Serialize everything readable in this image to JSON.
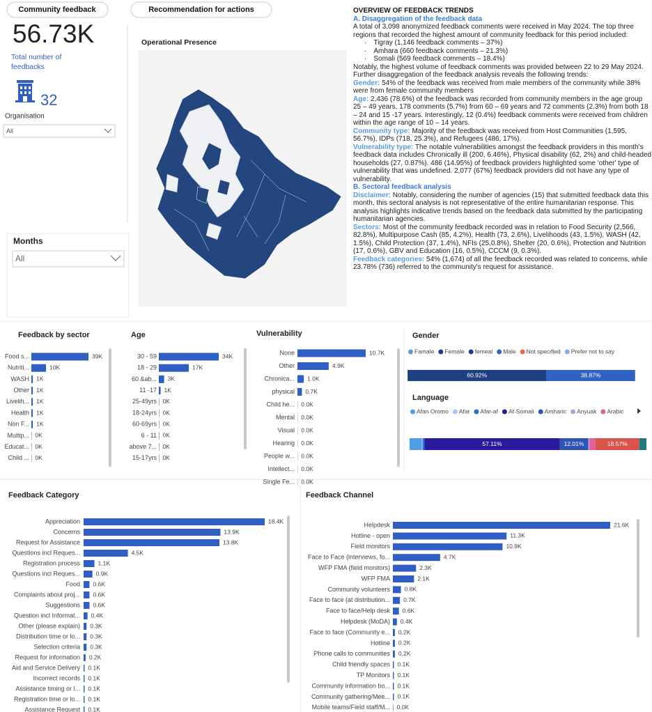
{
  "header": {
    "feedback_button": "Community feedback",
    "recommendation_button": "Recommendation for actions"
  },
  "kpi": {
    "total_value": "56.73K",
    "total_label": "Total number of feedbacks",
    "organisation_count": "32",
    "organisation_label": "Organisation",
    "organisation_slicer": "All"
  },
  "months": {
    "title": "Months",
    "slicer": "All"
  },
  "map": {
    "title": "Operational Presence"
  },
  "overview": {
    "title": "OVERVIEW OF FEEDBACK TRENDS",
    "sections": [
      {
        "heading": "A. Disaggregation of the feedback data",
        "paragraphs": [
          {
            "text": "A total of 3,098 anonymized feedback comments were received in May 2024. The top three regions that recorded the highest amount of community feedback for this period included:",
            "items": [
              "Tigray (1,146 feedback comments – 37%)",
              "Amhara (660 feedback comments – 21.3%)",
              "Somali (569 feedback comments – 18.4%)"
            ]
          },
          {
            "text": "Notably, the highest volume of feedback comments was provided between 22 to 29 May 2024. Further disaggregation of the feedback analysis reveals the following trends:"
          },
          {
            "label": "Gender:",
            "text": "54% of the feedback was received from male members of the community while 38% were from female community members"
          },
          {
            "label": "Age:",
            "text": "2,436 (78.6%) of the feedback was recorded from community members in the age group 25 – 49 years, 178 comments (5.7%) from 60 – 69 years and 72 comments (2.3%) from both 18 – 24 and 15 -17 years. Interestingly, 12 (0.4%) feedback comments were received from children within the age range of 10 – 14 years."
          },
          {
            "label": "Community type:",
            "text": "Majority of the feedback was received from Host Communities (1,595, 56.7%), IDPs (718, 25.3%), and Refugees (486, 17%)."
          },
          {
            "label": "Vulnerability type:",
            "text": "The notable vulnerabilities amongst the feedback providers in this month's feedback data includes Chronically ill (200, 6.46%), Physical disability (62, 2%) and child-headed households (27, 0.87%).  486 (14.95%) of feedback providers highlighted some 'other' type of vulnerability that was undefined. 2,077 (67%) feedback providers did not have any type of vulnerability."
          }
        ]
      },
      {
        "heading": "B. Sectoral feedback analysis",
        "paragraphs": [
          {
            "label": "Disclaimer:",
            "text": "Notably, considering the number of agencies (15) that submitted feedback data this month, this sectoral analysis is not representative of the entire humanitarian response. This analysis highlights indicative trends based on the feedback data submitted by the participating humanitarian agencies."
          },
          {
            "label": "Sectors:",
            "text": "Most of the community feedback recorded was in relation to Food Security (2,566, 82.8%), Multipurpose Cash (85, 4.2%), Health (73, 2.6%), Livelihoods (43, 1.5%), WASH (42, 1.5%), Child Protection (37, 1.4%), NFIs (25,0.8%), Shelter (20, 0.6%), Protection and  Nutrition (17, 0.6%), GBV and Education (16, 0.5%), CCCM (9, 0.3%)."
          },
          {
            "label": "Feedback categories:",
            "text": "54% (1,674) of all the feedback recorded was related to concerns, while 23.78% (736) referred to the community's request for assistance."
          }
        ]
      }
    ]
  },
  "chart_data": [
    {
      "type": "hbar",
      "title": "Feedback by sector",
      "color": "#2f5fc2",
      "categories": [
        "Food s...",
        "Nutriti...",
        "WASH",
        "Other",
        "Livelih...",
        "Health",
        "Non F...",
        "Multip...",
        "Educat...",
        "Child ..."
      ],
      "values": [
        39000,
        10000,
        1000,
        1000,
        1000,
        1000,
        1000,
        200,
        200,
        200
      ],
      "value_labels": [
        "39K",
        "10K",
        "1K",
        "1K",
        "1K",
        "1K",
        "1K",
        "0K",
        "0K",
        "0K"
      ]
    },
    {
      "type": "hbar",
      "title": "Age",
      "color": "#2f5fc2",
      "categories": [
        "30 - 59",
        "18 - 29",
        "60 &ab...",
        "11 -17",
        "25-49yrs",
        "18-24yrs",
        "60-69yrs",
        "6 - 11",
        "above 7...",
        "15-17yrs"
      ],
      "values": [
        34000,
        17000,
        3000,
        1000,
        200,
        200,
        200,
        200,
        200,
        200
      ],
      "value_labels": [
        "34K",
        "17K",
        "3K",
        "1K",
        "0K",
        "0K",
        "0K",
        "0K",
        "0K",
        "0K"
      ]
    },
    {
      "type": "hbar",
      "title": "Vulnerability",
      "color": "#2f5fc2",
      "categories": [
        "None",
        "Other",
        "Chronica...",
        "physical",
        "Child he...",
        "Mental",
        "Visual",
        "Hearing",
        "People w...",
        "Intellect...",
        "Single Fe..."
      ],
      "values": [
        10700,
        4900,
        1000,
        700,
        30,
        30,
        30,
        30,
        30,
        30,
        30
      ],
      "value_labels": [
        "10.7K",
        "4.9K",
        "1.0K",
        "0.7K",
        "0.0K",
        "0.0K",
        "0.0K",
        "0.0K",
        "0.0K",
        "0.0K",
        "0.0K"
      ]
    },
    {
      "type": "stacked_hbar",
      "title": "Gender",
      "series": [
        {
          "name": "Famale",
          "color": "#5b9bd5",
          "values": [
            0.05
          ]
        },
        {
          "name": "Female",
          "color": "#1e3f82",
          "values": [
            60.92
          ],
          "value_labels": [
            "60.92%"
          ]
        },
        {
          "name": "femeal",
          "color": "#253a8e",
          "values": [
            0.02
          ]
        },
        {
          "name": "Male",
          "color": "#2f62c4",
          "values": [
            38.87
          ],
          "value_labels": [
            "38.87%"
          ]
        },
        {
          "name": "Not specified",
          "color": "#e07040",
          "values": [
            0.1
          ]
        },
        {
          "name": "Prefer not to say",
          "color": "#7fb0ea",
          "values": [
            0.04
          ]
        }
      ]
    },
    {
      "type": "stacked_hbar",
      "title": "Language",
      "series": [
        {
          "name": "Afan Oromo",
          "color": "#4f9ee8",
          "values": [
            5.2
          ]
        },
        {
          "name": "Afar",
          "color": "#a8c8f0",
          "values": [
            0.3
          ]
        },
        {
          "name": "Afar-af",
          "color": "#2f6fd0",
          "values": [
            0.8
          ]
        },
        {
          "name": "Af-Somali",
          "color": "#2a1a9e",
          "values": [
            57.11
          ],
          "value_labels": [
            "57.11%"
          ]
        },
        {
          "name": "Amharic",
          "color": "#2c55b5",
          "values": [
            12.01
          ],
          "value_labels": [
            "12.01%"
          ]
        },
        {
          "name": "Anyuak",
          "color": "#b39ddb",
          "values": [
            0.5
          ]
        },
        {
          "name": "Arabic",
          "color": "#e0609a",
          "values": [
            2.5
          ]
        },
        {
          "color": "#d9534f",
          "values": [
            18.57
          ],
          "value_labels": [
            "18.57%"
          ]
        },
        {
          "color": "#1f7a7a",
          "values": [
            3.0
          ]
        }
      ]
    },
    {
      "type": "hbar",
      "title": "Feedback Category",
      "color": "#2f5fc2",
      "categories": [
        "Appreciation",
        "Concerns",
        "Request for Assistance",
        "Questions incl Reques...",
        "Registration process",
        "Questions incl Reques...",
        "Food",
        "Complaints about proj...",
        "Suggestions",
        "Question incl Informat...",
        "Other (please explain)",
        "Distribution time or lo...",
        "Selection criteria",
        "Request for information",
        "Aid and Service Delivery",
        "Incorrect records",
        "Assistance timing or l...",
        "Registration time or lo...",
        "Assistance Request"
      ],
      "values": [
        18400,
        13900,
        13800,
        4500,
        1100,
        900,
        600,
        600,
        600,
        400,
        300,
        300,
        300,
        200,
        100,
        100,
        100,
        100,
        100
      ],
      "value_labels": [
        "18.4K",
        "13.9K",
        "13.8K",
        "4.5K",
        "1.1K",
        "0.9K",
        "0.6K",
        "0.6K",
        "0.6K",
        "0.4K",
        "0.3K",
        "0.3K",
        "0.3K",
        "0.2K",
        "0.1K",
        "0.1K",
        "0.1K",
        "0.1K",
        "0.1K"
      ]
    },
    {
      "type": "hbar",
      "title": "Feedback Channel",
      "color": "#2f5fc2",
      "categories": [
        "Helpdesk",
        "Hotline - open",
        "Field monitors",
        "Face to Face (interviews, fo...",
        "WFP FMA (field monitors)",
        "WFP FMA",
        "Community volunteers",
        "Face to face (at distribution...",
        "Face to face/Help desk",
        "Helpdesk (MoDA)",
        "Face to face (Community e...",
        "Hotline",
        "Phone calls to communities",
        "Child friendly spaces",
        "TP Monitors",
        "Community information bo...",
        "Community gathering/Mee...",
        "Mobile teams/Field staff/M..."
      ],
      "values": [
        21600,
        11300,
        10900,
        4700,
        2300,
        2100,
        800,
        700,
        600,
        400,
        200,
        200,
        200,
        100,
        100,
        100,
        100,
        40
      ],
      "value_labels": [
        "21.6K",
        "11.3K",
        "10.9K",
        "4.7K",
        "2.3K",
        "2.1K",
        "0.8K",
        "0.7K",
        "0.6K",
        "0.4K",
        "0.2K",
        "0.2K",
        "0.2K",
        "0.1K",
        "0.1K",
        "0.1K",
        "0.1K",
        "0.0K"
      ]
    }
  ]
}
